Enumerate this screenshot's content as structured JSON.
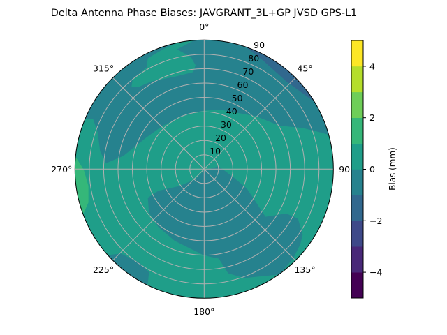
{
  "chart_data": {
    "type": "polar-contour",
    "title": "Delta Antenna Phase Biases: JAVGRANT_3L+GP  JVSD GPS-L1",
    "angular_ticks": [
      "0°",
      "45°",
      "90°",
      "135°",
      "180°",
      "225°",
      "270°",
      "315°"
    ],
    "angular_tick_values": [
      0,
      45,
      90,
      135,
      180,
      225,
      270,
      315
    ],
    "angular_direction": "clockwise",
    "angular_zero": "north",
    "radial_ticks": [
      "10",
      "20",
      "30",
      "40",
      "50",
      "60",
      "70",
      "80",
      "90"
    ],
    "radial_tick_values": [
      10,
      20,
      30,
      40,
      50,
      60,
      70,
      80,
      90
    ],
    "radial_range": [
      0,
      90
    ],
    "grid": true,
    "levels": [
      -5,
      -4,
      -3,
      -2,
      -1,
      0,
      1,
      2,
      3,
      4,
      5
    ],
    "level_colors": [
      "#440154",
      "#482878",
      "#3e4989",
      "#31688e",
      "#26828e",
      "#1f9e89",
      "#35b779",
      "#6ece58",
      "#b5de2b",
      "#fde725"
    ],
    "colormap": "viridis",
    "colorbar": {
      "label": "Bias (mm)",
      "range": [
        -5,
        5
      ],
      "ticks": [
        "−4",
        "−2",
        "0",
        "2",
        "4"
      ],
      "tick_values": [
        -4,
        -2,
        0,
        2,
        4
      ],
      "placement": "right"
    },
    "regions_summary": {
      "background_level": [
        0,
        1
      ],
      "top_and_upper_left_band": [
        -1,
        0
      ],
      "lower_band_through_center": [
        -1,
        0
      ],
      "top_right_edge_near_30deg": [
        -2,
        -1
      ],
      "left_edge_near_270deg": [
        1,
        2
      ]
    },
    "grid_color": "#b0b0b0"
  }
}
